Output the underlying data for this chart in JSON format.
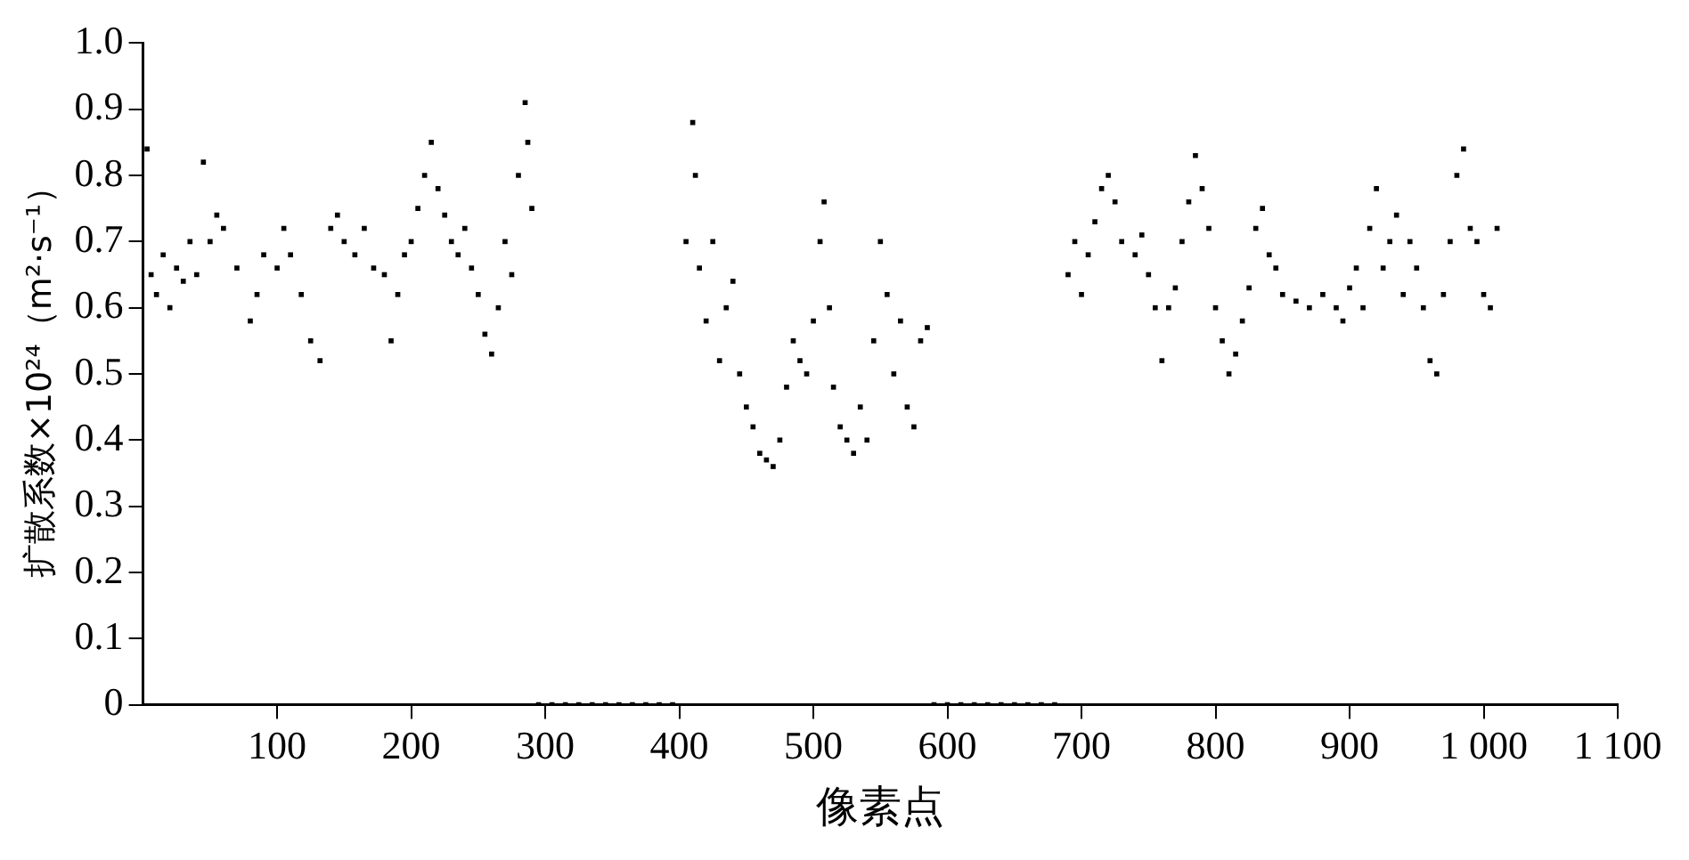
{
  "chart_data": {
    "type": "scatter",
    "xlabel": "像素点",
    "ylabel": "扩散系数×10²⁴（m²·s⁻¹）",
    "xlim": [
      0,
      1100
    ],
    "ylim": [
      0,
      1
    ],
    "xticks": [
      100,
      200,
      300,
      400,
      500,
      600,
      700,
      800,
      900,
      {
        "value": 1000,
        "label": "1 000"
      },
      {
        "value": 1100,
        "label": "1 100"
      }
    ],
    "yticks": [
      0,
      0.1,
      0.2,
      0.3,
      0.4,
      0.5,
      0.6,
      0.7,
      0.8,
      0.9,
      {
        "value": 1,
        "label": "1.0"
      }
    ],
    "grid": false,
    "legend": false,
    "marker": "square",
    "series": [
      {
        "color": "#000000",
        "x": [
          3,
          6,
          10,
          15,
          20,
          25,
          30,
          35,
          40,
          45,
          50,
          55,
          60,
          70,
          80,
          85,
          90,
          100,
          105,
          110,
          118,
          125,
          132,
          140,
          145,
          150,
          158,
          165,
          172,
          180,
          185,
          190,
          195,
          200,
          205,
          210,
          215,
          220,
          225,
          230,
          235,
          240,
          245,
          250,
          255,
          260,
          265,
          270,
          275,
          280,
          285,
          287,
          290,
          295,
          305,
          315,
          325,
          335,
          345,
          355,
          365,
          375,
          385,
          395,
          405,
          410,
          412,
          415,
          420,
          425,
          430,
          435,
          440,
          445,
          450,
          455,
          460,
          465,
          470,
          475,
          480,
          485,
          490,
          495,
          500,
          505,
          508,
          512,
          515,
          520,
          525,
          530,
          535,
          540,
          545,
          550,
          555,
          560,
          565,
          570,
          575,
          580,
          585,
          590,
          600,
          610,
          620,
          630,
          640,
          650,
          660,
          670,
          680,
          690,
          695,
          700,
          705,
          710,
          715,
          720,
          725,
          730,
          740,
          745,
          750,
          755,
          760,
          765,
          770,
          775,
          780,
          785,
          790,
          795,
          800,
          805,
          810,
          815,
          820,
          825,
          830,
          835,
          840,
          845,
          850,
          860,
          870,
          880,
          890,
          895,
          900,
          905,
          910,
          915,
          920,
          925,
          930,
          935,
          940,
          945,
          950,
          955,
          960,
          965,
          970,
          975,
          980,
          985,
          990,
          995,
          1000,
          1005,
          1010
        ],
        "values": [
          0.84,
          0.65,
          0.62,
          0.68,
          0.6,
          0.66,
          0.64,
          0.7,
          0.65,
          0.82,
          0.7,
          0.74,
          0.72,
          0.66,
          0.58,
          0.62,
          0.68,
          0.66,
          0.72,
          0.68,
          0.62,
          0.55,
          0.52,
          0.72,
          0.74,
          0.7,
          0.68,
          0.72,
          0.66,
          0.65,
          0.55,
          0.62,
          0.68,
          0.7,
          0.75,
          0.8,
          0.85,
          0.78,
          0.74,
          0.7,
          0.68,
          0.72,
          0.66,
          0.62,
          0.56,
          0.53,
          0.6,
          0.7,
          0.65,
          0.8,
          0.91,
          0.85,
          0.75,
          0,
          0,
          0,
          0,
          0,
          0,
          0,
          0,
          0,
          0,
          0,
          0.7,
          0.88,
          0.8,
          0.66,
          0.58,
          0.7,
          0.52,
          0.6,
          0.64,
          0.5,
          0.45,
          0.42,
          0.38,
          0.37,
          0.36,
          0.4,
          0.48,
          0.55,
          0.52,
          0.5,
          0.58,
          0.7,
          0.76,
          0.6,
          0.48,
          0.42,
          0.4,
          0.38,
          0.45,
          0.4,
          0.55,
          0.7,
          0.62,
          0.5,
          0.58,
          0.45,
          0.42,
          0.55,
          0.57,
          0,
          0,
          0,
          0,
          0,
          0,
          0,
          0,
          0,
          0,
          0.65,
          0.7,
          0.62,
          0.68,
          0.73,
          0.78,
          0.8,
          0.76,
          0.7,
          0.68,
          0.71,
          0.65,
          0.6,
          0.52,
          0.6,
          0.63,
          0.7,
          0.76,
          0.83,
          0.78,
          0.72,
          0.6,
          0.55,
          0.5,
          0.53,
          0.58,
          0.63,
          0.72,
          0.75,
          0.68,
          0.66,
          0.62,
          0.61,
          0.6,
          0.62,
          0.6,
          0.58,
          0.63,
          0.66,
          0.6,
          0.72,
          0.78,
          0.66,
          0.7,
          0.74,
          0.62,
          0.7,
          0.66,
          0.6,
          0.52,
          0.5,
          0.62,
          0.7,
          0.8,
          0.84,
          0.72,
          0.7,
          0.62,
          0.6,
          0.72
        ]
      }
    ]
  }
}
